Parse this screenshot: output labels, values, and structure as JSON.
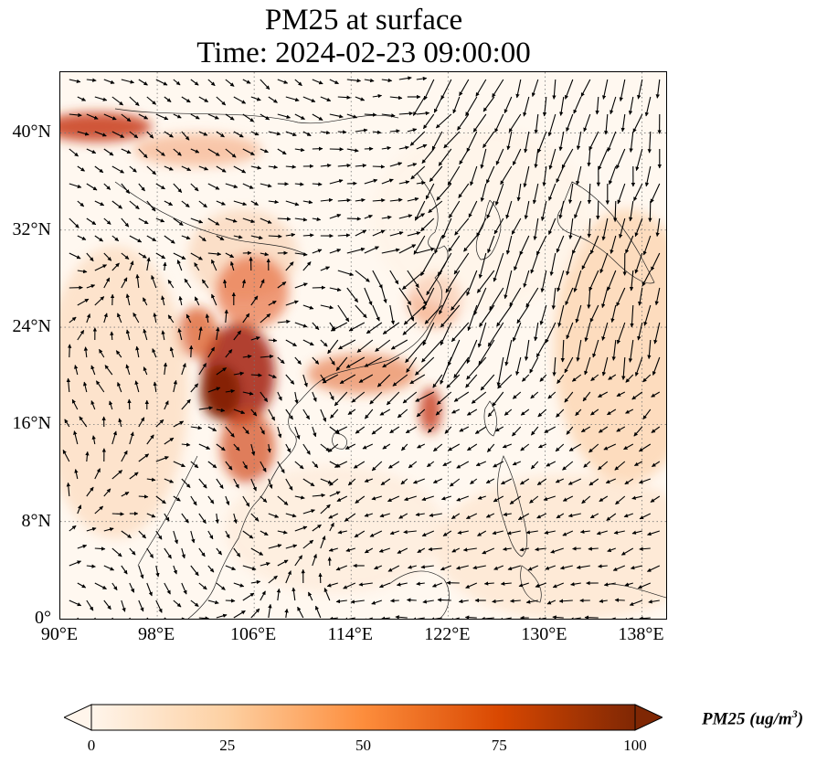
{
  "title_line1": "PM25 at surface",
  "title_line2": "Time: 2024-02-23 09:00:00",
  "map": {
    "lon_range": [
      90,
      140
    ],
    "lat_range": [
      0,
      45
    ],
    "gridlines": "dotted"
  },
  "x_ticks": [
    "90°E",
    "98°E",
    "106°E",
    "114°E",
    "122°E",
    "130°E",
    "138°E"
  ],
  "x_tick_values": [
    90,
    98,
    106,
    114,
    122,
    130,
    138
  ],
  "y_ticks": [
    "40°N",
    "32°N",
    "24°N",
    "16°N",
    "8°N",
    "0°"
  ],
  "y_tick_values": [
    40,
    32,
    24,
    16,
    8,
    0
  ],
  "colorbar": {
    "labels": [
      "0",
      "25",
      "50",
      "75",
      "100"
    ],
    "values": [
      0,
      25,
      50,
      75,
      100
    ],
    "title_main": "PM25 (ug/m",
    "title_sup": "3",
    "title_end": ")",
    "extend": "both",
    "colors": [
      "#fff5eb",
      "#fdd0a2",
      "#fd8d3c",
      "#d94801",
      "#7f2704"
    ]
  }
}
